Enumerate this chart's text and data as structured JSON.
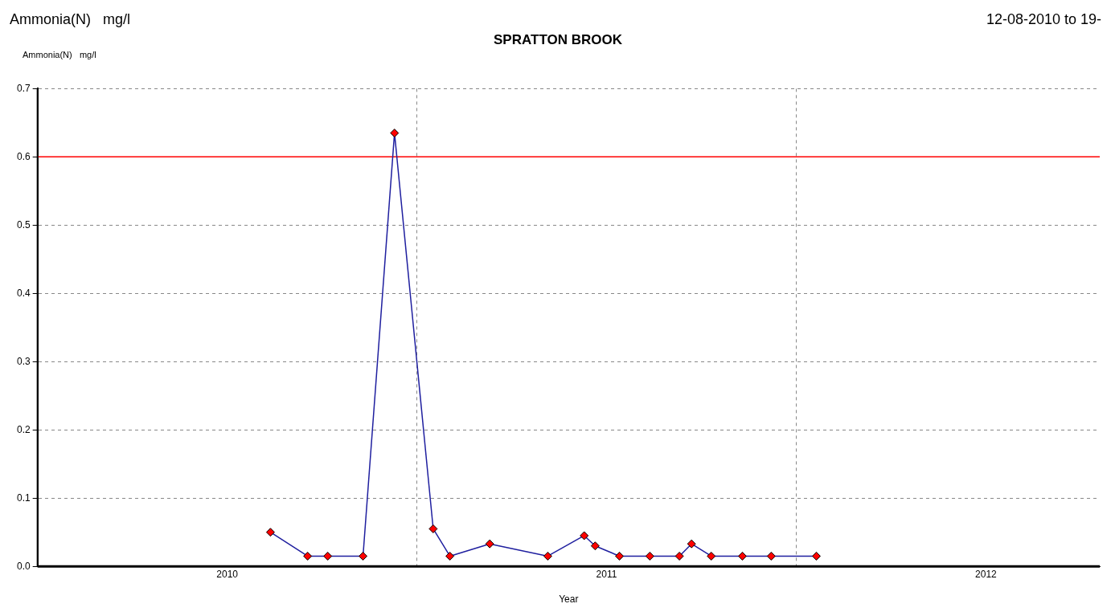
{
  "chart_data": {
    "type": "line",
    "title": "SPRATTON BROOK",
    "xlabel": "Year",
    "ylabel": "Ammonia(N)   mg/l",
    "annotations": [
      "Ammonia(N)   mg/l",
      "12-08-2010 to 19-"
    ],
    "x": [
      2010.614,
      2010.712,
      2010.765,
      2010.858,
      2010.941,
      2011.043,
      2011.087,
      2011.192,
      2011.345,
      2011.441,
      2011.47,
      2011.534,
      2011.614,
      2011.692,
      2011.724,
      2011.776,
      2011.858,
      2011.934,
      2012.053
    ],
    "series": [
      {
        "color": "#1f1f9f",
        "values": [
          0.05,
          0.015,
          0.015,
          0.015,
          0.635,
          0.055,
          0.015,
          0.033,
          0.015,
          0.045,
          0.03,
          0.015,
          0.015,
          0.015,
          0.033,
          0.015,
          0.015,
          0.015,
          0.015
        ]
      }
    ],
    "marker": "diamond",
    "line_style": "solid",
    "xlim": [
      2010,
      2012.8
    ],
    "xticks": [
      {
        "value": 2010.5,
        "label": "2010"
      },
      {
        "value": 2011,
        "label": null
      },
      {
        "value": 2011.5,
        "label": "2011"
      },
      {
        "value": 2012,
        "label": null
      },
      {
        "value": 2012.5,
        "label": "2012"
      }
    ],
    "ylim": [
      0,
      0.7
    ],
    "yticks": [
      {
        "value": 0,
        "label": "0.0"
      },
      {
        "value": 0.1,
        "label": "0.1"
      },
      {
        "value": 0.2,
        "label": "0.2"
      },
      {
        "value": 0.3,
        "label": "0.3"
      },
      {
        "value": 0.4,
        "label": "0.4"
      },
      {
        "value": 0.5,
        "label": "0.5"
      },
      {
        "value": 0.6,
        "label": "0.6"
      },
      {
        "value": 0.7,
        "label": "0.7"
      }
    ],
    "grid": true,
    "legend": false,
    "ref_lines": [
      {
        "axis": "y",
        "value": 0.6,
        "color": "#ff0000"
      }
    ]
  }
}
